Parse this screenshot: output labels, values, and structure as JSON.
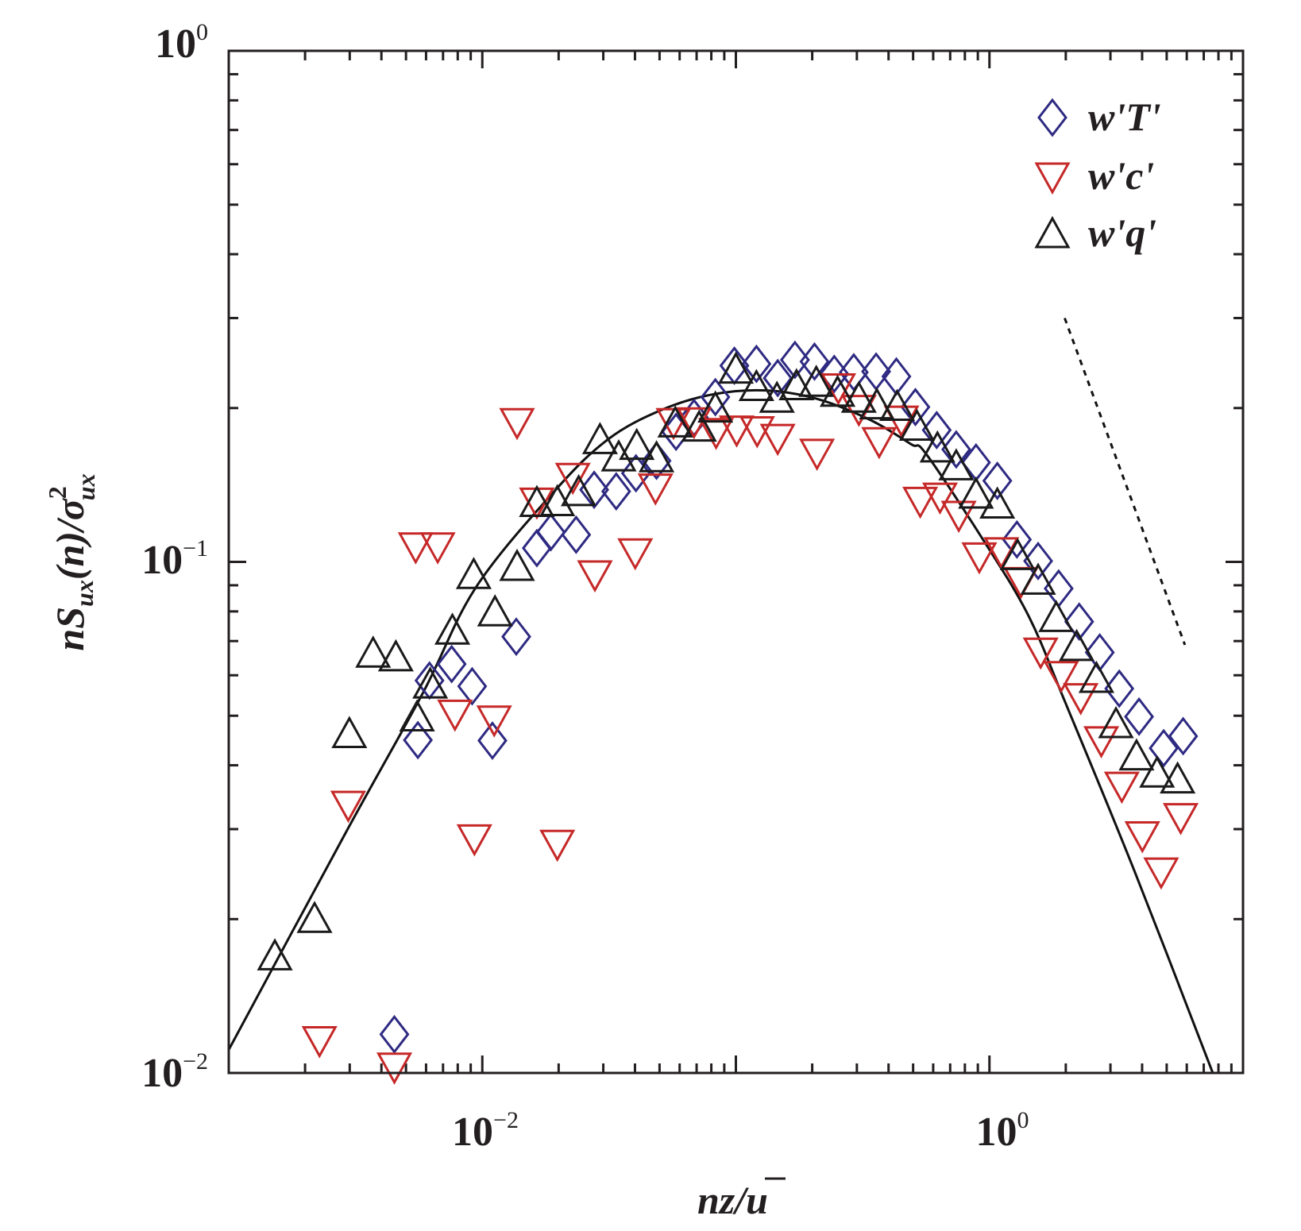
{
  "chart_data": {
    "type": "scatter",
    "title": "",
    "xlabel": "nz/ū",
    "ylabel": "nS_ux(n)/σ²_ux",
    "xscale": "log",
    "yscale": "log",
    "xlim": [
      0.001,
      10
    ],
    "ylim": [
      0.01,
      1
    ],
    "grid": false,
    "legend_position": "top-right",
    "x_tick_labels": [
      {
        "value": 0.01,
        "base": "10",
        "exp": "−2"
      },
      {
        "value": 1,
        "base": "10",
        "exp": "0"
      }
    ],
    "y_tick_labels": [
      {
        "value": 1,
        "base": "10",
        "exp": "0"
      },
      {
        "value": 0.1,
        "base": "10",
        "exp": "−1"
      },
      {
        "value": 0.01,
        "base": "10",
        "exp": "−2"
      }
    ],
    "axis_labels": {
      "x": {
        "main": "nz/",
        "over": "u"
      },
      "y": {
        "n": "n",
        "S": "S",
        "sub1": "ux",
        "mid": "(n)/σ",
        "sub2": "ux",
        "sup": "2"
      }
    },
    "series": [
      {
        "name": "w'T'",
        "marker": "diamond",
        "color": "#2e2a82",
        "points": [
          [
            0.00557,
            0.0448
          ],
          [
            0.0045,
            0.0119
          ],
          [
            0.00619,
            0.0586
          ],
          [
            0.00757,
            0.0631
          ],
          [
            0.00912,
            0.0571
          ],
          [
            0.01096,
            0.0447
          ],
          [
            0.01361,
            0.0714
          ],
          [
            0.01641,
            0.1064
          ],
          [
            0.01862,
            0.1143
          ],
          [
            0.02344,
            0.113
          ],
          [
            0.02761,
            0.1384
          ],
          [
            0.03373,
            0.1374
          ],
          [
            0.04036,
            0.1491
          ],
          [
            0.04864,
            0.1577
          ],
          [
            0.05808,
            0.1797
          ],
          [
            0.06839,
            0.1914
          ],
          [
            0.08299,
            0.2101
          ],
          [
            0.09863,
            0.2421
          ],
          [
            0.1205,
            0.244
          ],
          [
            0.1462,
            0.2289
          ],
          [
            0.171,
            0.2485
          ],
          [
            0.2042,
            0.2466
          ],
          [
            0.2443,
            0.2333
          ],
          [
            0.2917,
            0.235
          ],
          [
            0.3573,
            0.2358
          ],
          [
            0.4295,
            0.2306
          ],
          [
            0.5104,
            0.2009
          ],
          [
            0.6194,
            0.1811
          ],
          [
            0.7396,
            0.166
          ],
          [
            0.8851,
            0.1565
          ],
          [
            1.074,
            0.1441
          ],
          [
            1.283,
            0.1106
          ],
          [
            1.556,
            0.1004
          ],
          [
            1.875,
            0.0887
          ],
          [
            2.259,
            0.0764
          ],
          [
            2.723,
            0.0665
          ],
          [
            3.251,
            0.0565
          ],
          [
            3.89,
            0.0498
          ],
          [
            4.865,
            0.0432
          ],
          [
            5.806,
            0.0456
          ]
        ]
      },
      {
        "name": "w'c'",
        "marker": "triangle-down",
        "color": "#c62828",
        "points": [
          [
            0.00296,
            0.0335
          ],
          [
            0.00228,
            0.0116
          ],
          [
            0.0045,
            0.0103
          ],
          [
            0.00546,
            0.1073
          ],
          [
            0.00667,
            0.1073
          ],
          [
            0.0078,
            0.0505
          ],
          [
            0.00931,
            0.0288
          ],
          [
            0.01114,
            0.0492
          ],
          [
            0.01371,
            0.1879
          ],
          [
            0.01641,
            0.1313
          ],
          [
            0.01976,
            0.0281
          ],
          [
            0.02275,
            0.1468
          ],
          [
            0.0278,
            0.0946
          ],
          [
            0.04009,
            0.1045
          ],
          [
            0.04819,
            0.1399
          ],
          [
            0.05675,
            0.1879
          ],
          [
            0.06839,
            0.1886
          ],
          [
            0.08356,
            0.1797
          ],
          [
            0.1007,
            0.1817
          ],
          [
            0.1213,
            0.1811
          ],
          [
            0.1462,
            0.175
          ],
          [
            0.2089,
            0.1636
          ],
          [
            0.2535,
            0.2197
          ],
          [
            0.3055,
            0.1994
          ],
          [
            0.3673,
            0.1724
          ],
          [
            0.4498,
            0.19
          ],
          [
            0.5333,
            0.1318
          ],
          [
            0.6383,
            0.1343
          ],
          [
            0.7568,
            0.1237
          ],
          [
            0.912,
            0.1026
          ],
          [
            1.114,
            0.105
          ],
          [
            1.331,
            0.0918
          ],
          [
            1.592,
            0.0668
          ],
          [
            1.919,
            0.0601
          ],
          [
            2.291,
            0.0544
          ],
          [
            2.761,
            0.0448
          ],
          [
            3.327,
            0.0365
          ],
          [
            4.009,
            0.0292
          ],
          [
            4.755,
            0.0248
          ],
          [
            5.679,
            0.0317
          ]
        ]
      },
      {
        "name": "w'q'",
        "marker": "triangle-up",
        "color": "#1a1a1a",
        "points": [
          [
            0.00152,
            0.0169
          ],
          [
            0.00218,
            0.02
          ],
          [
            0.00299,
            0.046
          ],
          [
            0.00371,
            0.0661
          ],
          [
            0.00456,
            0.065
          ],
          [
            0.00553,
            0.0496
          ],
          [
            0.00623,
            0.0575
          ],
          [
            0.00762,
            0.0733
          ],
          [
            0.00925,
            0.0942
          ],
          [
            0.01122,
            0.0796
          ],
          [
            0.01371,
            0.0977
          ],
          [
            0.01641,
            0.1303
          ],
          [
            0.01976,
            0.1308
          ],
          [
            0.02399,
            0.1368
          ],
          [
            0.02911,
            0.173
          ],
          [
            0.03451,
            0.16
          ],
          [
            0.04064,
            0.1685
          ],
          [
            0.04864,
            0.1594
          ],
          [
            0.05768,
            0.1865
          ],
          [
            0.07161,
            0.183
          ],
          [
            0.08299,
            0.1994
          ],
          [
            0.1,
            0.2376
          ],
          [
            0.1205,
            0.2197
          ],
          [
            0.1452,
            0.2084
          ],
          [
            0.1734,
            0.2205
          ],
          [
            0.2075,
            0.2239
          ],
          [
            0.2518,
            0.2141
          ],
          [
            0.3055,
            0.2084
          ],
          [
            0.3597,
            0.2023
          ],
          [
            0.4325,
            0.2009
          ],
          [
            0.5176,
            0.1837
          ],
          [
            0.6237,
            0.1666
          ],
          [
            0.7396,
            0.1537
          ],
          [
            0.8851,
            0.1353
          ],
          [
            1.074,
            0.1294
          ],
          [
            1.292,
            0.1026
          ],
          [
            1.556,
            0.0918
          ],
          [
            1.834,
            0.0776
          ],
          [
            2.208,
            0.0681
          ],
          [
            2.642,
            0.059
          ],
          [
            3.155,
            0.0481
          ],
          [
            3.802,
            0.0416
          ],
          [
            4.581,
            0.0385
          ],
          [
            5.521,
            0.0375
          ]
        ]
      }
    ],
    "fit_curve": {
      "name": "model-curve",
      "color": "#111111",
      "points": [
        [
          0.001,
          0.0111
        ],
        [
          0.00288,
          0.0294
        ],
        [
          0.00583,
          0.0554
        ],
        [
          0.00944,
          0.0892
        ],
        [
          0.0195,
          0.1385
        ],
        [
          0.0314,
          0.1739
        ],
        [
          0.0505,
          0.198
        ],
        [
          0.0815,
          0.2128
        ],
        [
          0.132,
          0.2165
        ],
        [
          0.212,
          0.208
        ],
        [
          0.343,
          0.189
        ],
        [
          0.49,
          0.17
        ],
        [
          0.566,
          0.162
        ],
        [
          0.972,
          0.108
        ],
        [
          1.43,
          0.0782
        ],
        [
          2.0,
          0.0528
        ],
        [
          3.76,
          0.0246
        ],
        [
          7.6,
          0.01
        ]
      ]
    },
    "reference_line": {
      "name": "slope-minus-4-3",
      "style": "dashed",
      "color": "#111111",
      "points": [
        [
          1.98,
          0.3
        ],
        [
          5.9,
          0.0688
        ]
      ]
    }
  }
}
